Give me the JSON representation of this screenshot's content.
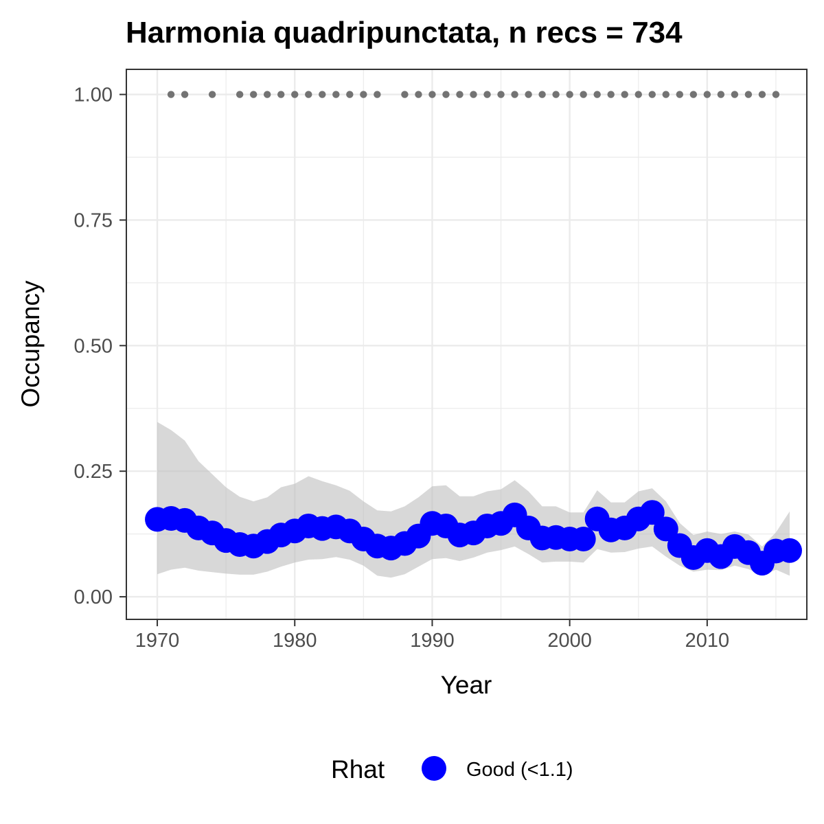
{
  "chart_data": {
    "type": "line",
    "title": "Harmonia quadripunctata, n recs = 734",
    "xlabel": "Year",
    "ylabel": "Occupancy",
    "xlim": [
      1967.75,
      2017.25
    ],
    "ylim": [
      -0.045,
      1.05
    ],
    "x_ticks": [
      1970,
      1980,
      1990,
      2000,
      2010
    ],
    "x_tick_labels": [
      "1970",
      "1980",
      "1990",
      "2000",
      "2010"
    ],
    "y_ticks": [
      0,
      0.25,
      0.5,
      0.75,
      1
    ],
    "y_tick_labels": [
      "0.00",
      "0.25",
      "0.50",
      "0.75",
      "1.00"
    ],
    "grid": true,
    "legend": {
      "title": "Rhat",
      "position": "bottom",
      "entries": [
        {
          "label": "Good (<1.1)",
          "color": "#0000ff"
        }
      ]
    },
    "colors": {
      "series": "#0000ff",
      "ribbon": "#bebebe",
      "records": "#737373",
      "panel_border": "#333333",
      "grid": "#ebebeb"
    },
    "series": [
      {
        "x": [
          1970,
          1971,
          1972,
          1973,
          1974,
          1975,
          1976,
          1977,
          1978,
          1979,
          1980,
          1981,
          1982,
          1983,
          1984,
          1985,
          1986,
          1987,
          1988,
          1989,
          1990,
          1991,
          1992,
          1993,
          1994,
          1995,
          1996,
          1997,
          1998,
          1999,
          2000,
          2001,
          2002,
          2003,
          2004,
          2005,
          2006,
          2007,
          2008,
          2009,
          2010,
          2011,
          2012,
          2013,
          2014,
          2015,
          2016
        ],
        "values": [
          0.154,
          0.156,
          0.152,
          0.137,
          0.127,
          0.112,
          0.104,
          0.101,
          0.11,
          0.123,
          0.131,
          0.141,
          0.136,
          0.139,
          0.131,
          0.115,
          0.101,
          0.097,
          0.106,
          0.121,
          0.146,
          0.141,
          0.123,
          0.127,
          0.141,
          0.146,
          0.163,
          0.137,
          0.117,
          0.118,
          0.115,
          0.115,
          0.155,
          0.133,
          0.137,
          0.155,
          0.168,
          0.135,
          0.102,
          0.078,
          0.092,
          0.08,
          0.1,
          0.088,
          0.067,
          0.091,
          0.092
        ],
        "lower": [
          0.045,
          0.054,
          0.058,
          0.052,
          0.049,
          0.046,
          0.044,
          0.044,
          0.05,
          0.06,
          0.068,
          0.074,
          0.075,
          0.079,
          0.074,
          0.062,
          0.042,
          0.038,
          0.045,
          0.06,
          0.075,
          0.077,
          0.071,
          0.078,
          0.088,
          0.093,
          0.1,
          0.085,
          0.068,
          0.07,
          0.07,
          0.068,
          0.095,
          0.088,
          0.089,
          0.096,
          0.1,
          0.08,
          0.062,
          0.05,
          0.054,
          0.053,
          0.062,
          0.055,
          0.042,
          0.054,
          0.042
        ],
        "upper": [
          0.348,
          0.332,
          0.311,
          0.27,
          0.244,
          0.218,
          0.199,
          0.19,
          0.198,
          0.218,
          0.225,
          0.24,
          0.23,
          0.222,
          0.211,
          0.19,
          0.172,
          0.17,
          0.18,
          0.198,
          0.22,
          0.222,
          0.2,
          0.2,
          0.21,
          0.214,
          0.232,
          0.21,
          0.18,
          0.18,
          0.168,
          0.168,
          0.212,
          0.188,
          0.188,
          0.21,
          0.216,
          0.19,
          0.147,
          0.123,
          0.13,
          0.125,
          0.13,
          0.124,
          0.1,
          0.128,
          0.17
        ]
      }
    ],
    "records": {
      "x": [
        1971,
        1972,
        1974,
        1976,
        1977,
        1978,
        1979,
        1980,
        1981,
        1982,
        1983,
        1984,
        1985,
        1986,
        1988,
        1989,
        1990,
        1991,
        1992,
        1993,
        1994,
        1995,
        1996,
        1997,
        1998,
        1999,
        2000,
        2001,
        2002,
        2003,
        2004,
        2005,
        2006,
        2007,
        2008,
        2009,
        2010,
        2011,
        2012,
        2013,
        2014,
        2015
      ],
      "y": 1.0
    }
  }
}
